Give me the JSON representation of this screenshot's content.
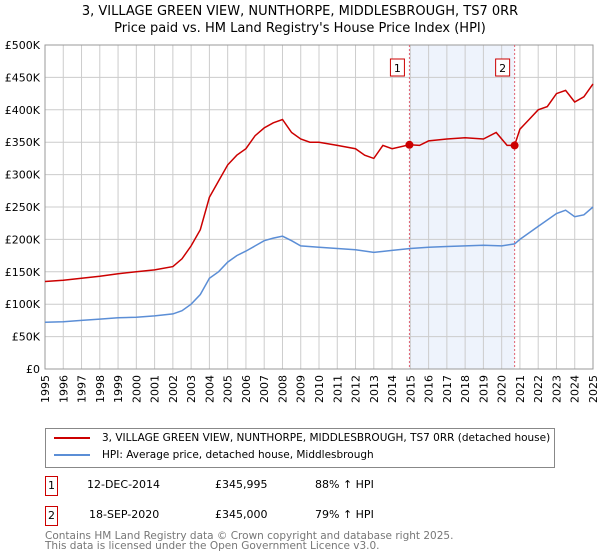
{
  "chart_data": {
    "type": "line",
    "title": "3, VILLAGE GREEN VIEW, NUNTHORPE, MIDDLESBROUGH, TS7 0RR",
    "subtitle": "Price paid vs. HM Land Registry's House Price Index (HPI)",
    "xlim": [
      1995,
      2025
    ],
    "ylim": [
      0,
      500000
    ],
    "x_ticks": [
      "1995",
      "1996",
      "1997",
      "1998",
      "1999",
      "2000",
      "2001",
      "2002",
      "2003",
      "2004",
      "2005",
      "2006",
      "2007",
      "2008",
      "2009",
      "2010",
      "2011",
      "2012",
      "2013",
      "2014",
      "2015",
      "2016",
      "2017",
      "2018",
      "2019",
      "2020",
      "2021",
      "2022",
      "2023",
      "2024",
      "2025"
    ],
    "y_ticks": [
      {
        "v": 0,
        "label": "£0"
      },
      {
        "v": 50000,
        "label": "£50K"
      },
      {
        "v": 100000,
        "label": "£100K"
      },
      {
        "v": 150000,
        "label": "£150K"
      },
      {
        "v": 200000,
        "label": "£200K"
      },
      {
        "v": 250000,
        "label": "£250K"
      },
      {
        "v": 300000,
        "label": "£300K"
      },
      {
        "v": 350000,
        "label": "£350K"
      },
      {
        "v": 400000,
        "label": "£400K"
      },
      {
        "v": 450000,
        "label": "£450K"
      },
      {
        "v": 500000,
        "label": "£500K"
      }
    ],
    "grid": true,
    "series": [
      {
        "name": "3, VILLAGE GREEN VIEW, NUNTHORPE, MIDDLESBROUGH, TS7 0RR (detached house)",
        "color": "#cc0000",
        "x": [
          1995,
          1996,
          1997,
          1998,
          1999,
          2000,
          2001,
          2002,
          2002.5,
          2003,
          2003.5,
          2004,
          2004.5,
          2005,
          2005.5,
          2006,
          2006.5,
          2007,
          2007.5,
          2008,
          2008.5,
          2009,
          2009.5,
          2010,
          2011,
          2012,
          2012.5,
          2013,
          2013.5,
          2014,
          2014.95,
          2015.5,
          2016,
          2017,
          2018,
          2019,
          2019.7,
          2020.3,
          2020.71,
          2021,
          2021.5,
          2022,
          2022.5,
          2023,
          2023.5,
          2024,
          2024.5,
          2025
        ],
        "y": [
          135000,
          137000,
          140000,
          143000,
          147000,
          150000,
          153000,
          158000,
          170000,
          190000,
          215000,
          265000,
          290000,
          315000,
          330000,
          340000,
          360000,
          372000,
          380000,
          385000,
          365000,
          355000,
          350000,
          350000,
          345000,
          340000,
          330000,
          325000,
          345000,
          340000,
          345995,
          345000,
          352000,
          355000,
          357000,
          355000,
          365000,
          345000,
          345000,
          370000,
          385000,
          400000,
          405000,
          425000,
          430000,
          412000,
          420000,
          440000
        ]
      },
      {
        "name": "HPI: Average price, detached house, Middlesbrough",
        "color": "#5b8ed6",
        "x": [
          1995,
          1996,
          1997,
          1998,
          1999,
          2000,
          2001,
          2002,
          2002.5,
          2003,
          2003.5,
          2004,
          2004.5,
          2005,
          2005.5,
          2006,
          2006.5,
          2007,
          2007.5,
          2008,
          2008.5,
          2009,
          2010,
          2011,
          2012,
          2013,
          2014,
          2015,
          2016,
          2017,
          2018,
          2019,
          2020,
          2020.71,
          2021,
          2022,
          2023,
          2023.5,
          2024,
          2024.5,
          2025
        ],
        "y": [
          72000,
          73000,
          75000,
          77000,
          79000,
          80000,
          82000,
          85000,
          90000,
          100000,
          115000,
          140000,
          150000,
          165000,
          175000,
          182000,
          190000,
          198000,
          202000,
          205000,
          198000,
          190000,
          188000,
          186000,
          184000,
          180000,
          183000,
          186000,
          188000,
          189000,
          190000,
          191000,
          190000,
          193000,
          200000,
          220000,
          240000,
          245000,
          235000,
          238000,
          250000
        ]
      }
    ],
    "sales": [
      {
        "label": "1",
        "x": 2014.95,
        "y": 345995,
        "date": "12-DEC-2014",
        "price": "£345,995",
        "hpi": "88% ↑ HPI"
      },
      {
        "label": "2",
        "x": 2020.71,
        "y": 345000,
        "date": "18-SEP-2020",
        "price": "£345,000",
        "hpi": "79% ↑ HPI"
      }
    ],
    "legend_placement": "below"
  },
  "footer": {
    "line1": "Contains HM Land Registry data © Crown copyright and database right 2025.",
    "line2": "This data is licensed under the Open Government Licence v3.0."
  }
}
